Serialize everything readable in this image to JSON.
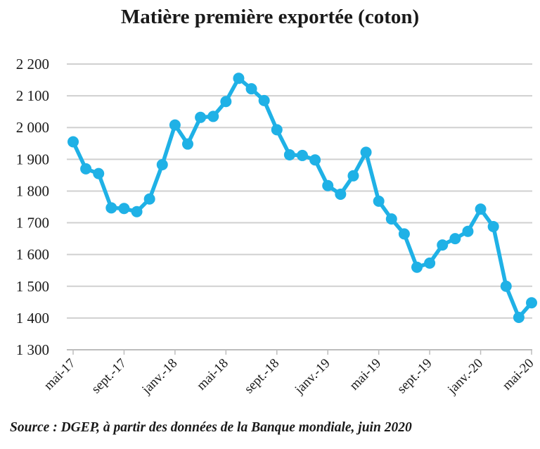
{
  "chart_data": {
    "type": "line",
    "title": "Matière première exportée (coton)",
    "xlabel": "",
    "ylabel": "",
    "ylim": [
      1300,
      2200
    ],
    "ytick_values": [
      1300,
      1400,
      1500,
      1600,
      1700,
      1800,
      1900,
      2000,
      2100,
      2200
    ],
    "ytick_labels": [
      "1 300",
      "1 400",
      "1 500",
      "1 600",
      "1 700",
      "1 800",
      "1 900",
      "2 000",
      "2 100",
      "2 200"
    ],
    "x": [
      "mai-17",
      "juin-17",
      "juil.-17",
      "août-17",
      "sept.-17",
      "oct.-17",
      "nov.-17",
      "déc.-17",
      "janv.-18",
      "févr.-18",
      "mars-18",
      "avr.-18",
      "mai-18",
      "juin-18",
      "juil.-18",
      "août-18",
      "sept.-18",
      "oct.-18",
      "nov.-18",
      "déc.-18",
      "janv.-19",
      "févr.-19",
      "mars-19",
      "avr.-19",
      "mai-19",
      "juin-19",
      "juil.-19",
      "août-19",
      "sept.-19",
      "oct.-19",
      "nov.-19",
      "déc.-19",
      "janv.-20",
      "févr.-20",
      "mars-20",
      "avr.-20",
      "mai-20"
    ],
    "xtick_labels": [
      {
        "index": 0,
        "label": "mai-17"
      },
      {
        "index": 4,
        "label": "sept.-17"
      },
      {
        "index": 8,
        "label": "janv.-18"
      },
      {
        "index": 12,
        "label": "mai-18"
      },
      {
        "index": 16,
        "label": "sept.-18"
      },
      {
        "index": 20,
        "label": "janv.-19"
      },
      {
        "index": 24,
        "label": "mai-19"
      },
      {
        "index": 28,
        "label": "sept.-19"
      },
      {
        "index": 32,
        "label": "janv.-20"
      },
      {
        "index": 36,
        "label": "mai-20"
      }
    ],
    "series": [
      {
        "values": [
          1955,
          1870,
          1855,
          1747,
          1745,
          1735,
          1775,
          1883,
          2008,
          1948,
          2032,
          2035,
          2082,
          2155,
          2122,
          2085,
          1993,
          1914,
          1912,
          1898,
          1817,
          1790,
          1848,
          1922,
          1768,
          1712,
          1665,
          1560,
          1573,
          1630,
          1650,
          1673,
          1743,
          1688,
          1500,
          1402,
          1448
        ]
      }
    ],
    "grid": true,
    "line_color": "#1fb1e6",
    "grid_color": "#d0d0d0"
  },
  "source": "Source : DGEP, à partir des données de la Banque mondiale, juin 2020"
}
